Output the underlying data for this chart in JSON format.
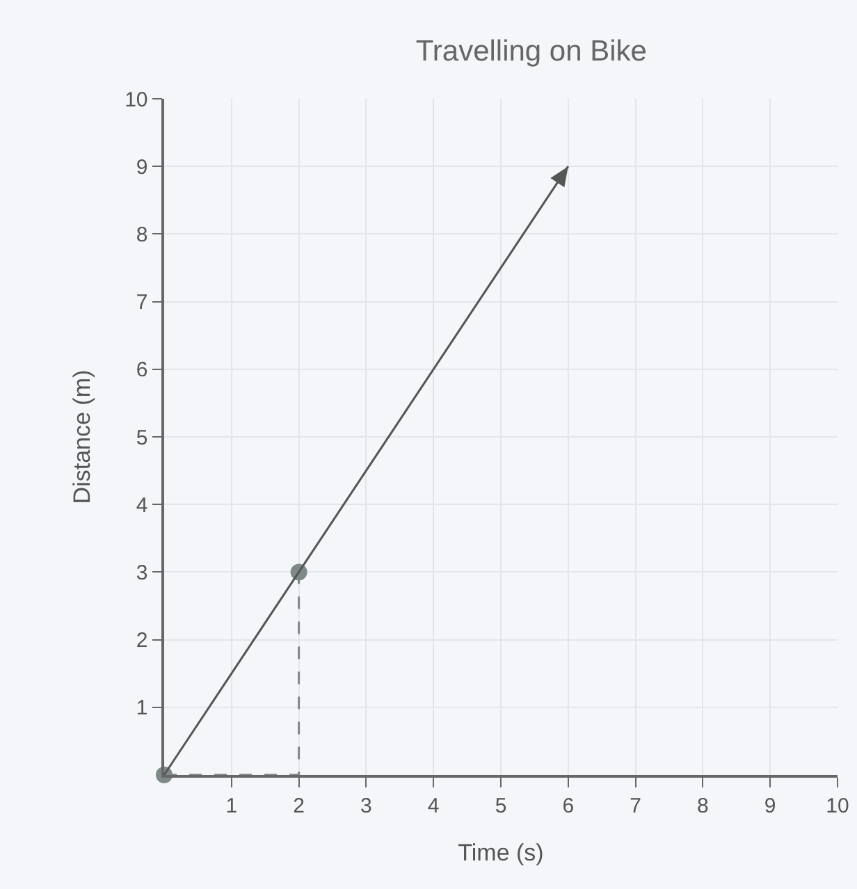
{
  "chart_data": {
    "type": "line",
    "title": "Travelling on Bike",
    "xlabel": "Time (s)",
    "ylabel": "Distance (m)",
    "xlim": [
      0,
      10
    ],
    "ylim": [
      0,
      10
    ],
    "xticks": [
      1,
      2,
      3,
      4,
      5,
      6,
      7,
      8,
      9,
      10
    ],
    "yticks": [
      1,
      2,
      3,
      4,
      5,
      6,
      7,
      8,
      9,
      10
    ],
    "grid": true,
    "marker": "none",
    "series": [
      {
        "type": "line",
        "color": "#555555",
        "x": [
          0,
          2,
          6
        ],
        "values": [
          0,
          3,
          9
        ],
        "line_style": "solid"
      },
      {
        "color": "#7d8a88",
        "x": [
          0,
          2,
          2
        ],
        "values": [
          0,
          0,
          3
        ],
        "line_style": "dashed"
      },
      {
        "type": "scatter",
        "color": "#7d8a88",
        "x": [
          0,
          2
        ],
        "values": [
          0,
          3
        ],
        "marker": "circle"
      }
    ]
  }
}
